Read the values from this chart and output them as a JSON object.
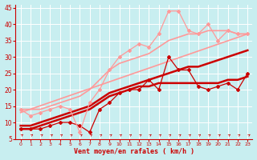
{
  "bg_color": "#c8eef0",
  "grid_color": "#ffffff",
  "xlabel": "Vent moyen/en rafales ( km/h )",
  "xlabel_color": "#cc0000",
  "tick_color": "#cc0000",
  "axis_color": "#cc0000",
  "xlim": [
    -0.5,
    23.5
  ],
  "ylim": [
    5,
    46
  ],
  "yticks": [
    5,
    10,
    15,
    20,
    25,
    30,
    35,
    40,
    45
  ],
  "xticks": [
    0,
    1,
    2,
    3,
    4,
    5,
    6,
    7,
    8,
    9,
    10,
    11,
    12,
    13,
    14,
    15,
    16,
    17,
    18,
    19,
    20,
    21,
    22,
    23
  ],
  "lines": [
    {
      "x": [
        0,
        1,
        2,
        3,
        4,
        5,
        6,
        7,
        8,
        9,
        10,
        11,
        12,
        13,
        14,
        15,
        16,
        17,
        18,
        19,
        20,
        21,
        22,
        23
      ],
      "y": [
        8,
        8,
        8,
        9,
        10,
        10,
        9,
        7,
        14,
        16,
        19,
        20,
        20,
        23,
        20,
        30,
        26,
        26,
        21,
        20,
        21,
        22,
        20,
        25
      ],
      "color": "#cc0000",
      "lw": 0.9,
      "marker": "D",
      "ms": 2.0
    },
    {
      "x": [
        0,
        1,
        2,
        3,
        4,
        5,
        6,
        7,
        8,
        9,
        10,
        11,
        12,
        13,
        14,
        15,
        16,
        17,
        18,
        19,
        20,
        21,
        22,
        23
      ],
      "y": [
        8,
        8,
        9,
        10,
        11,
        12,
        13,
        14,
        16,
        18,
        19,
        20,
        21,
        21,
        22,
        22,
        22,
        22,
        22,
        22,
        22,
        23,
        23,
        24
      ],
      "color": "#cc0000",
      "lw": 1.8,
      "marker": null,
      "ms": 0
    },
    {
      "x": [
        0,
        1,
        2,
        3,
        4,
        5,
        6,
        7,
        8,
        9,
        10,
        11,
        12,
        13,
        14,
        15,
        16,
        17,
        18,
        19,
        20,
        21,
        22,
        23
      ],
      "y": [
        9,
        9,
        10,
        11,
        12,
        13,
        14,
        15,
        17,
        19,
        20,
        21,
        22,
        23,
        24,
        25,
        26,
        27,
        27,
        28,
        29,
        30,
        31,
        32
      ],
      "color": "#cc0000",
      "lw": 1.8,
      "marker": null,
      "ms": 0
    },
    {
      "x": [
        0,
        1,
        2,
        3,
        4,
        5,
        6,
        7,
        8,
        9,
        10,
        11,
        12,
        13,
        14,
        15,
        16,
        17,
        18,
        19,
        20,
        21,
        22,
        23
      ],
      "y": [
        14,
        12,
        13,
        14,
        15,
        14,
        7,
        16,
        20,
        26,
        30,
        32,
        34,
        33,
        37,
        44,
        44,
        38,
        37,
        40,
        35,
        38,
        37,
        37
      ],
      "color": "#ff9999",
      "lw": 0.9,
      "marker": "D",
      "ms": 2.0
    },
    {
      "x": [
        0,
        1,
        2,
        3,
        4,
        5,
        6,
        7,
        8,
        9,
        10,
        11,
        12,
        13,
        14,
        15,
        16,
        17,
        18,
        19,
        20,
        21,
        22,
        23
      ],
      "y": [
        14,
        14,
        14,
        15,
        16,
        17,
        18,
        20,
        23,
        26,
        28,
        29,
        30,
        31,
        33,
        35,
        36,
        37,
        37,
        38,
        38,
        38,
        37,
        37
      ],
      "color": "#ff9999",
      "lw": 1.2,
      "marker": null,
      "ms": 0
    },
    {
      "x": [
        0,
        23
      ],
      "y": [
        13,
        37
      ],
      "color": "#ff9999",
      "lw": 1.2,
      "marker": null,
      "ms": 0
    }
  ],
  "arrow_color": "#cc0000"
}
